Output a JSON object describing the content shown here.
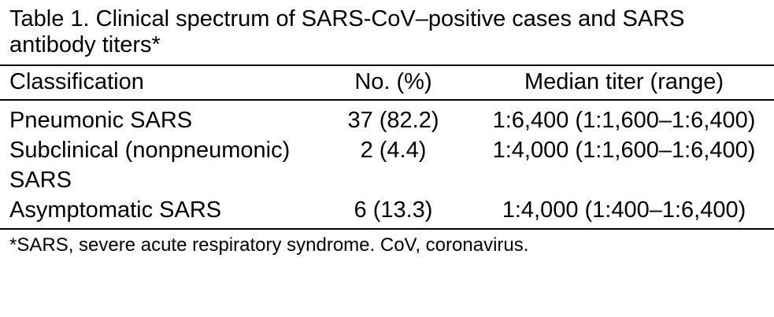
{
  "table": {
    "caption": "Table 1. Clinical spectrum of SARS-CoV–positive cases and SARS antibody titers*",
    "headers": {
      "classification": "Classification",
      "number": "No. (%)",
      "median_titer": "Median titer (range)"
    },
    "rows": [
      {
        "classification": "Pneumonic SARS",
        "number": "37 (82.2)",
        "median_titer": "1:6,400 (1:1,600–1:6,400)"
      },
      {
        "classification": "Subclinical (nonpneumonic) SARS",
        "number": "2 (4.4)",
        "median_titer": "1:4,000 (1:1,600–1:6,400)"
      },
      {
        "classification": "Asymptomatic SARS",
        "number": "6 (13.3)",
        "median_titer": "1:4,000 (1:400–1:6,400)"
      }
    ],
    "footnote": "*SARS, severe acute respiratory syndrome. CoV, coronavirus."
  }
}
